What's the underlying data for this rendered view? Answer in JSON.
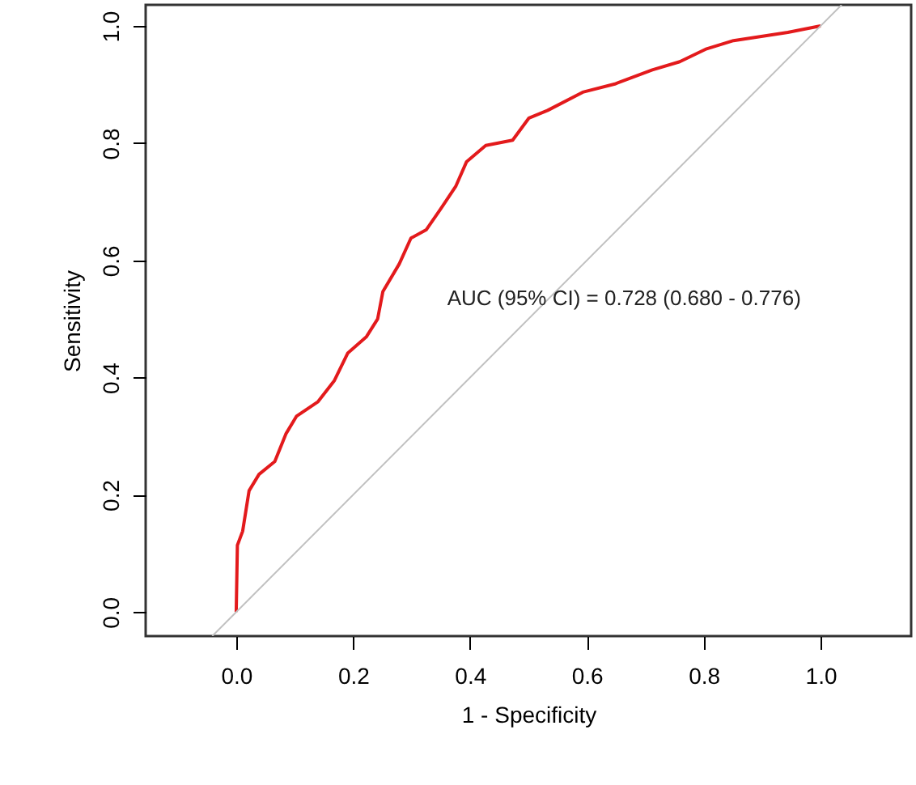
{
  "chart_data": {
    "type": "line",
    "xlabel": "1 - Specificity",
    "ylabel": "Sensitivity",
    "xlim": [
      -0.155,
      1.155
    ],
    "ylim": [
      -0.041,
      1.036
    ],
    "xticks": [
      {
        "value": 0,
        "label": "0.0"
      },
      0.2,
      0.4,
      0.6,
      0.8,
      {
        "value": 1,
        "label": "1.0"
      }
    ],
    "yticks": [
      {
        "value": 0,
        "label": "0.0"
      },
      0.2,
      0.4,
      0.6,
      0.8,
      {
        "value": 1,
        "label": "1.0"
      }
    ],
    "grid": false,
    "marker": "none",
    "line_style": "solid",
    "annotations": [
      "AUC (95% CI) = 0.728 (0.680 - 0.776)"
    ],
    "series": [
      {
        "color": "#e31a1c",
        "x": [
          0.0,
          0.002,
          0.011,
          0.022,
          0.039,
          0.066,
          0.085,
          0.103,
          0.14,
          0.168,
          0.191,
          0.223,
          0.242,
          0.251,
          0.279,
          0.299,
          0.325,
          0.348,
          0.376,
          0.394,
          0.427,
          0.473,
          0.501,
          0.533,
          0.593,
          0.648,
          0.712,
          0.759,
          0.805,
          0.851,
          0.944,
          1.0
        ],
        "values": [
          0.0,
          0.114,
          0.138,
          0.207,
          0.235,
          0.257,
          0.304,
          0.334,
          0.359,
          0.395,
          0.442,
          0.47,
          0.5,
          0.547,
          0.594,
          0.638,
          0.652,
          0.685,
          0.727,
          0.768,
          0.796,
          0.805,
          0.843,
          0.856,
          0.887,
          0.901,
          0.925,
          0.939,
          0.961,
          0.975,
          0.989,
          1.0
        ]
      },
      {
        "color": "#c0c0c0",
        "x": [
          -0.041,
          1.036
        ],
        "values": [
          -0.041,
          1.036
        ]
      }
    ]
  }
}
